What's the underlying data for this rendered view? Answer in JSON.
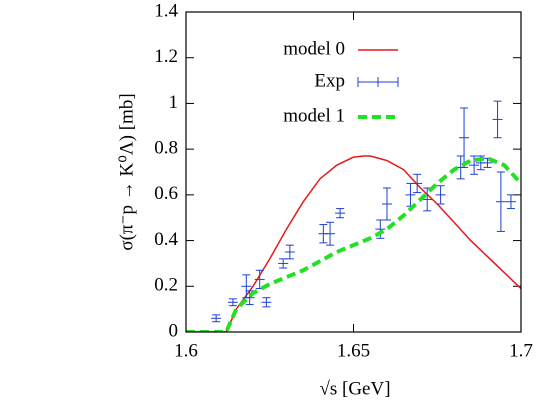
{
  "chart_data": {
    "type": "line",
    "x_label": "√s [GeV]",
    "y_label": "σ(π⁻p → K⁰Λ) [mb]",
    "xlim": [
      1.6,
      1.7
    ],
    "xticks": [
      1.6,
      1.65,
      1.7
    ],
    "ylim": [
      0,
      1.4
    ],
    "yticks": [
      0,
      0.2,
      0.4,
      0.6,
      0.8,
      1,
      1.2,
      1.4
    ],
    "legend": "top-right",
    "series": [
      {
        "name": "model 0",
        "type": "line",
        "color": "#e41a1c",
        "dash": false,
        "x": [
          1.6,
          1.612,
          1.615,
          1.62,
          1.625,
          1.63,
          1.635,
          1.64,
          1.645,
          1.65,
          1.653,
          1.655,
          1.66,
          1.665,
          1.67,
          1.675,
          1.68,
          1.685,
          1.69,
          1.695,
          1.7
        ],
        "values": [
          0,
          0,
          0.1,
          0.2,
          0.32,
          0.45,
          0.57,
          0.67,
          0.73,
          0.765,
          0.77,
          0.77,
          0.75,
          0.71,
          0.63,
          0.56,
          0.48,
          0.4,
          0.33,
          0.26,
          0.19
        ]
      },
      {
        "name": "Exp",
        "type": "errorbar",
        "color": "#1f3fd6",
        "x": [
          1.609,
          1.614,
          1.618,
          1.619,
          1.622,
          1.624,
          1.629,
          1.631,
          1.641,
          1.643,
          1.646,
          1.658,
          1.66,
          1.667,
          1.669,
          1.672,
          1.676,
          1.682,
          1.683,
          1.686,
          1.688,
          1.69,
          1.693,
          1.694,
          1.697
        ],
        "values": [
          0.06,
          0.13,
          0.2,
          0.15,
          0.23,
          0.13,
          0.3,
          0.35,
          0.43,
          0.43,
          0.52,
          0.45,
          0.56,
          0.6,
          0.65,
          0.58,
          0.6,
          0.72,
          0.85,
          0.73,
          0.74,
          0.74,
          0.93,
          0.57,
          0.57
        ],
        "errors": [
          0.015,
          0.015,
          0.05,
          0.03,
          0.04,
          0.02,
          0.02,
          0.03,
          0.04,
          0.05,
          0.02,
          0.04,
          0.07,
          0.05,
          0.04,
          0.05,
          0.04,
          0.05,
          0.13,
          0.04,
          0.03,
          0.02,
          0.08,
          0.13,
          0.03
        ]
      },
      {
        "name": "model 1",
        "type": "line",
        "color": "#22e022",
        "dash": true,
        "x": [
          1.6,
          1.612,
          1.615,
          1.62,
          1.625,
          1.63,
          1.635,
          1.64,
          1.645,
          1.65,
          1.655,
          1.66,
          1.665,
          1.67,
          1.675,
          1.68,
          1.685,
          1.69,
          1.695,
          1.7
        ],
        "values": [
          0,
          0,
          0.1,
          0.17,
          0.21,
          0.24,
          0.27,
          0.31,
          0.35,
          0.38,
          0.41,
          0.45,
          0.51,
          0.58,
          0.65,
          0.71,
          0.75,
          0.76,
          0.73,
          0.65
        ]
      }
    ]
  }
}
